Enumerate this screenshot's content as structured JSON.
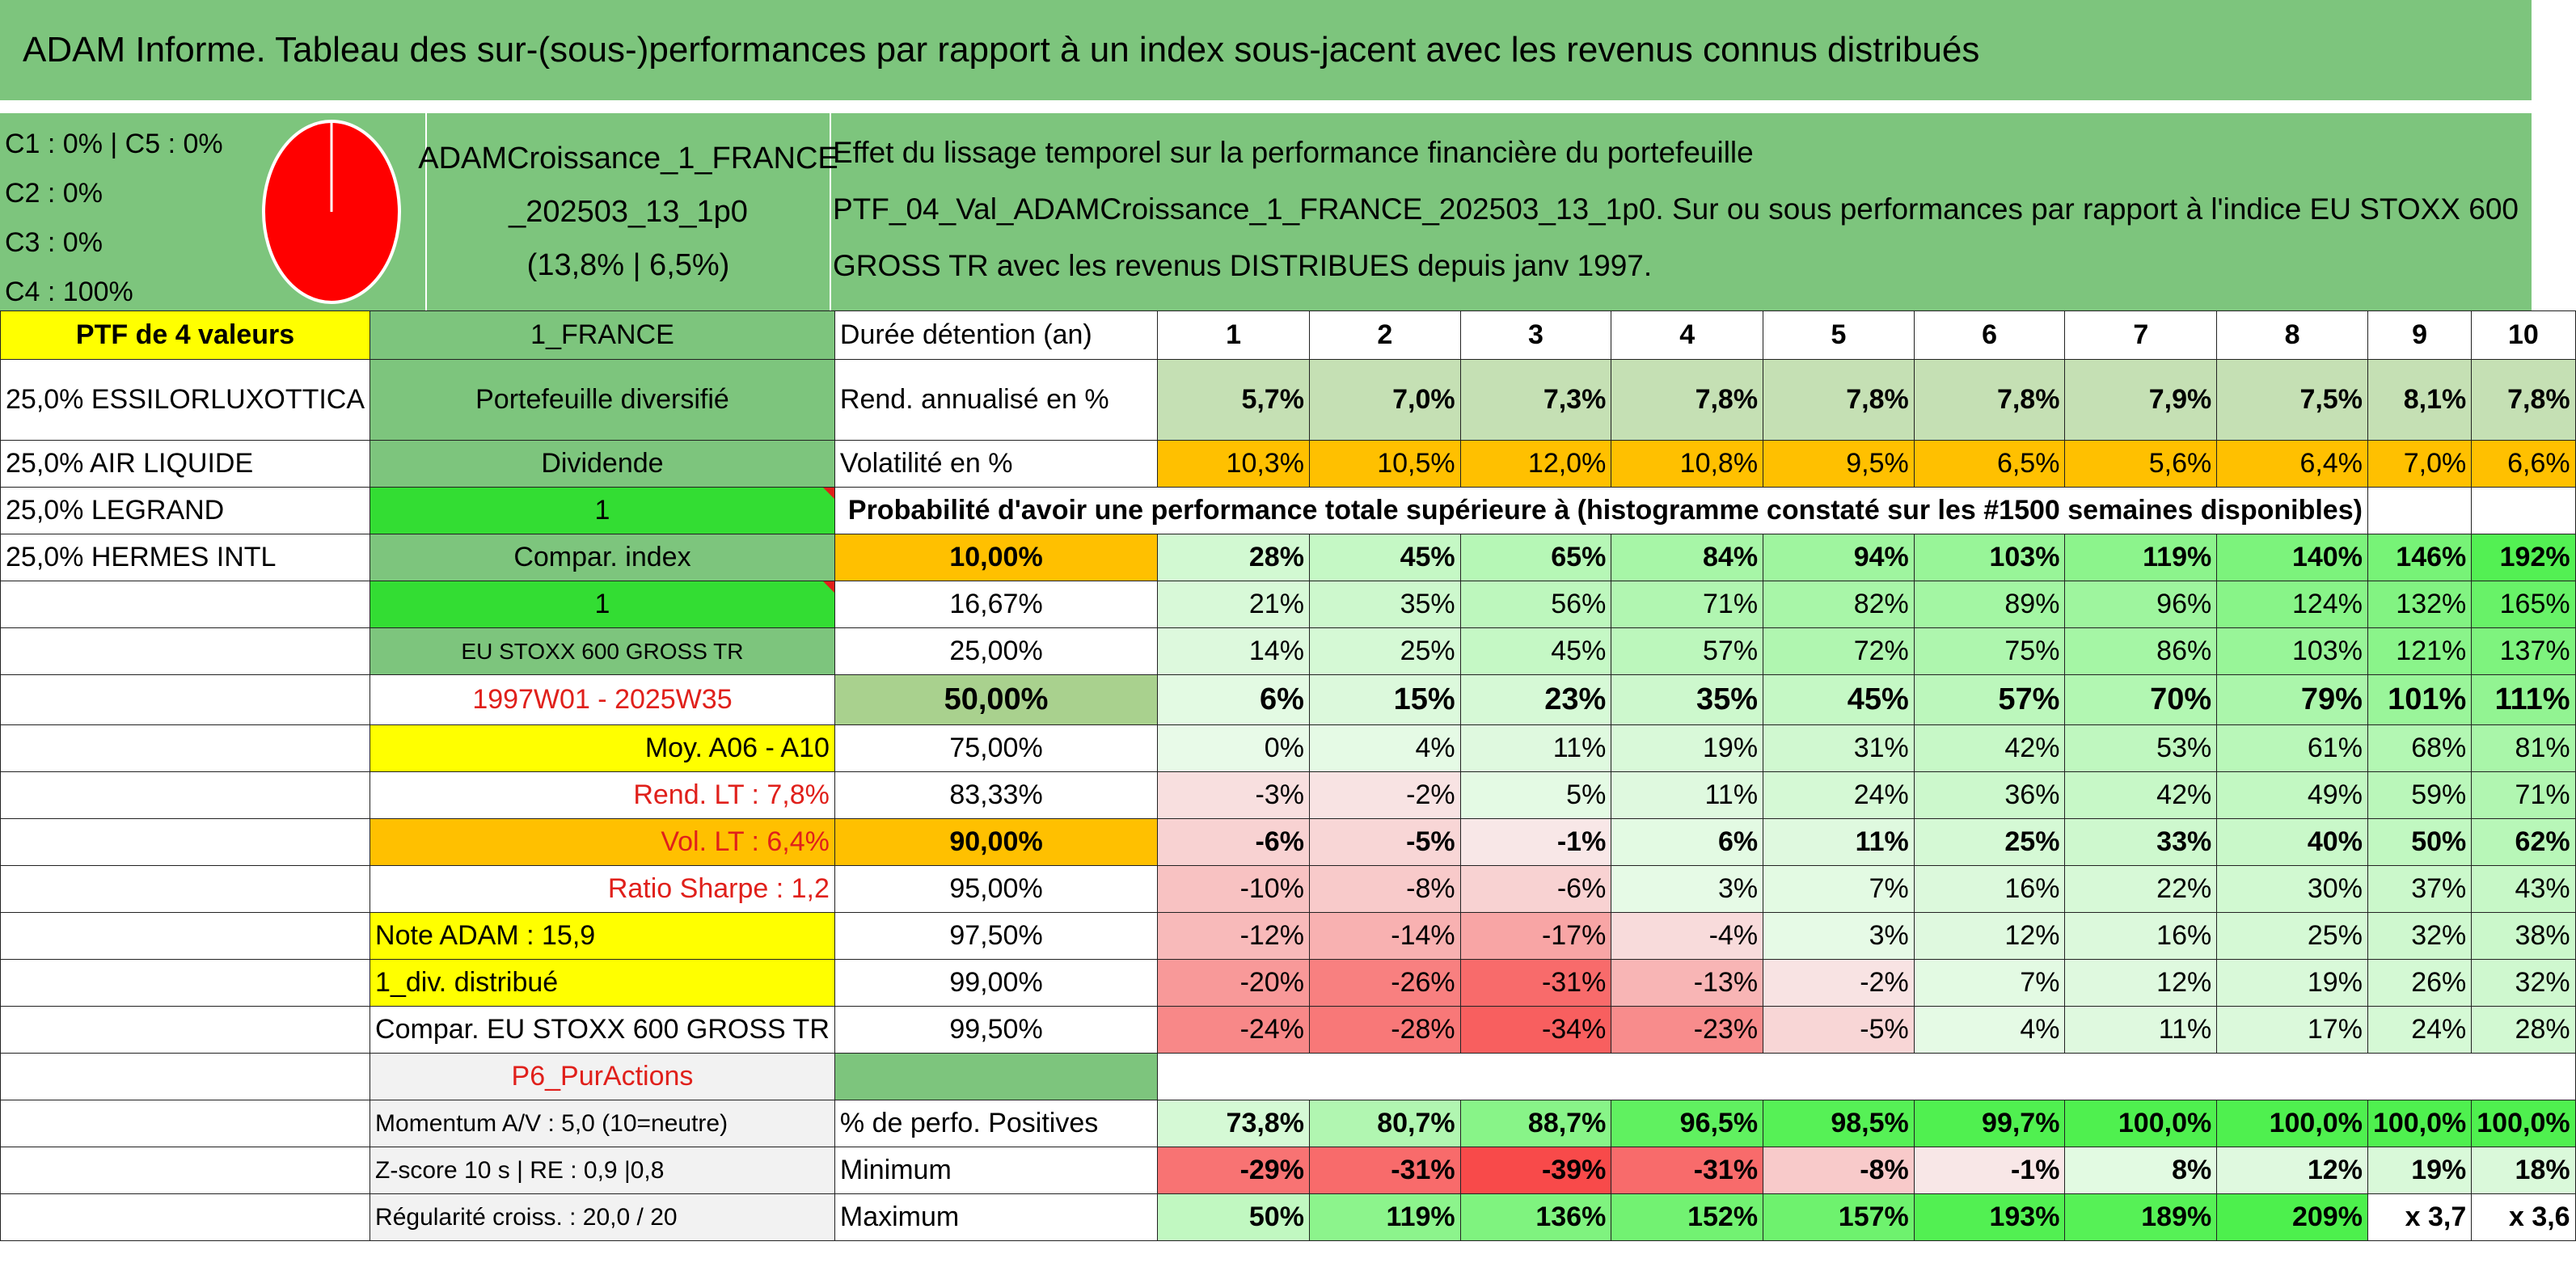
{
  "title": "ADAM Informe. Tableau des sur-(sous-)performances par rapport à un index sous-jacent avec les revenus connus distribués",
  "concentration": [
    "C1 : 0% | C5 : 0%",
    "C2 : 0%",
    "C3 : 0%",
    "C4 : 100%"
  ],
  "pie": {
    "fill": "#ff0000",
    "share_percent": 100
  },
  "portfolio": {
    "line1": "ADAMCroissance_1_FRANCE",
    "line2": "_202503_13_1p0",
    "line3": "(13,8% | 6,5%)"
  },
  "description": [
    "Effet du lissage temporel sur la performance financière du portefeuille",
    "PTF_04_Val_ADAMCroissance_1_FRANCE_202503_13_1p0. Sur ou sous performances par rapport à l'indice EU STOXX 600",
    "GROSS TR avec les revenus DISTRIBUES depuis janv 1997."
  ],
  "left": {
    "ptf_header": "PTF de 4 valeurs",
    "holdings": [
      "25,0% ESSILORLUXOTTICA",
      "25,0% AIR LIQUIDE",
      "25,0% LEGRAND",
      "25,0% HERMES INTL"
    ]
  },
  "info": {
    "country": "1_FRANCE",
    "type": "Portefeuille diversifié",
    "dividend_label": "Dividende",
    "dividend_value": "1",
    "compar_label": "Compar. index",
    "compar_value": "1",
    "index_name": "EU STOXX 600 GROSS TR",
    "period": "1997W01 - 2025W35",
    "moy": "Moy. A06 - A10",
    "rend_lt": "Rend. LT : 7,8%",
    "vol_lt": "Vol. LT : 6,4%",
    "sharpe": "Ratio Sharpe : 1,2",
    "note": "Note ADAM : 15,9",
    "div": "1_div. distribué",
    "compar_full": "Compar. EU STOXX 600 GROSS TR",
    "p6": "P6_PurActions",
    "momentum": "Momentum A/V : 5,0 (10=neutre)",
    "zscore": "Z-score 10 s | RE : 0,9 |0,8",
    "regularite": "Régularité croiss. : 20,0 / 20"
  },
  "table": {
    "duration_label": "Durée détention (an)",
    "years": [
      "1",
      "2",
      "3",
      "4",
      "5",
      "6",
      "7",
      "8",
      "9",
      "10"
    ],
    "rend_label": "Rend. annualisé en %",
    "rend": [
      "5,7%",
      "7,0%",
      "7,3%",
      "7,8%",
      "7,8%",
      "7,8%",
      "7,9%",
      "7,5%",
      "8,1%",
      "7,8%"
    ],
    "vol_label": "Volatilité en %",
    "vol": [
      "10,3%",
      "10,5%",
      "12,0%",
      "10,8%",
      "9,5%",
      "6,5%",
      "5,6%",
      "6,4%",
      "7,0%",
      "6,6%"
    ],
    "prob_header": "Probabilité d'avoir une performance totale supérieure à (histogramme constaté sur les #1500 semaines disponibles)",
    "prob_rows": [
      {
        "p": "10,00%",
        "v": [
          "28%",
          "45%",
          "65%",
          "84%",
          "94%",
          "103%",
          "119%",
          "140%",
          "146%",
          "192%"
        ]
      },
      {
        "p": "16,67%",
        "v": [
          "21%",
          "35%",
          "56%",
          "71%",
          "82%",
          "89%",
          "96%",
          "124%",
          "132%",
          "165%"
        ]
      },
      {
        "p": "25,00%",
        "v": [
          "14%",
          "25%",
          "45%",
          "57%",
          "72%",
          "75%",
          "86%",
          "103%",
          "121%",
          "137%"
        ]
      },
      {
        "p": "50,00%",
        "v": [
          "6%",
          "15%",
          "23%",
          "35%",
          "45%",
          "57%",
          "70%",
          "79%",
          "101%",
          "111%"
        ]
      },
      {
        "p": "75,00%",
        "v": [
          "0%",
          "4%",
          "11%",
          "19%",
          "31%",
          "42%",
          "53%",
          "61%",
          "68%",
          "81%"
        ]
      },
      {
        "p": "83,33%",
        "v": [
          "-3%",
          "-2%",
          "5%",
          "11%",
          "24%",
          "36%",
          "42%",
          "49%",
          "59%",
          "71%"
        ]
      },
      {
        "p": "90,00%",
        "v": [
          "-6%",
          "-5%",
          "-1%",
          "6%",
          "11%",
          "25%",
          "33%",
          "40%",
          "50%",
          "62%"
        ]
      },
      {
        "p": "95,00%",
        "v": [
          "-10%",
          "-8%",
          "-6%",
          "3%",
          "7%",
          "16%",
          "22%",
          "30%",
          "37%",
          "43%"
        ]
      },
      {
        "p": "97,50%",
        "v": [
          "-12%",
          "-14%",
          "-17%",
          "-4%",
          "3%",
          "12%",
          "16%",
          "25%",
          "32%",
          "38%"
        ]
      },
      {
        "p": "99,00%",
        "v": [
          "-20%",
          "-26%",
          "-31%",
          "-13%",
          "-2%",
          "7%",
          "12%",
          "19%",
          "26%",
          "32%"
        ]
      },
      {
        "p": "99,50%",
        "v": [
          "-24%",
          "-28%",
          "-34%",
          "-23%",
          "-5%",
          "4%",
          "11%",
          "17%",
          "24%",
          "28%"
        ]
      }
    ],
    "pos_label": "% de perfo. Positives",
    "pos": [
      "73,8%",
      "80,7%",
      "88,7%",
      "96,5%",
      "98,5%",
      "99,7%",
      "100,0%",
      "100,0%",
      "100,0%",
      "100,0%"
    ],
    "min_label": "Minimum",
    "min": [
      "-29%",
      "-31%",
      "-39%",
      "-31%",
      "-8%",
      "-1%",
      "8%",
      "12%",
      "19%",
      "18%"
    ],
    "max_label": "Maximum",
    "max": [
      "50%",
      "119%",
      "136%",
      "152%",
      "157%",
      "193%",
      "189%",
      "209%",
      "x 3,7",
      "x 3,6"
    ]
  }
}
